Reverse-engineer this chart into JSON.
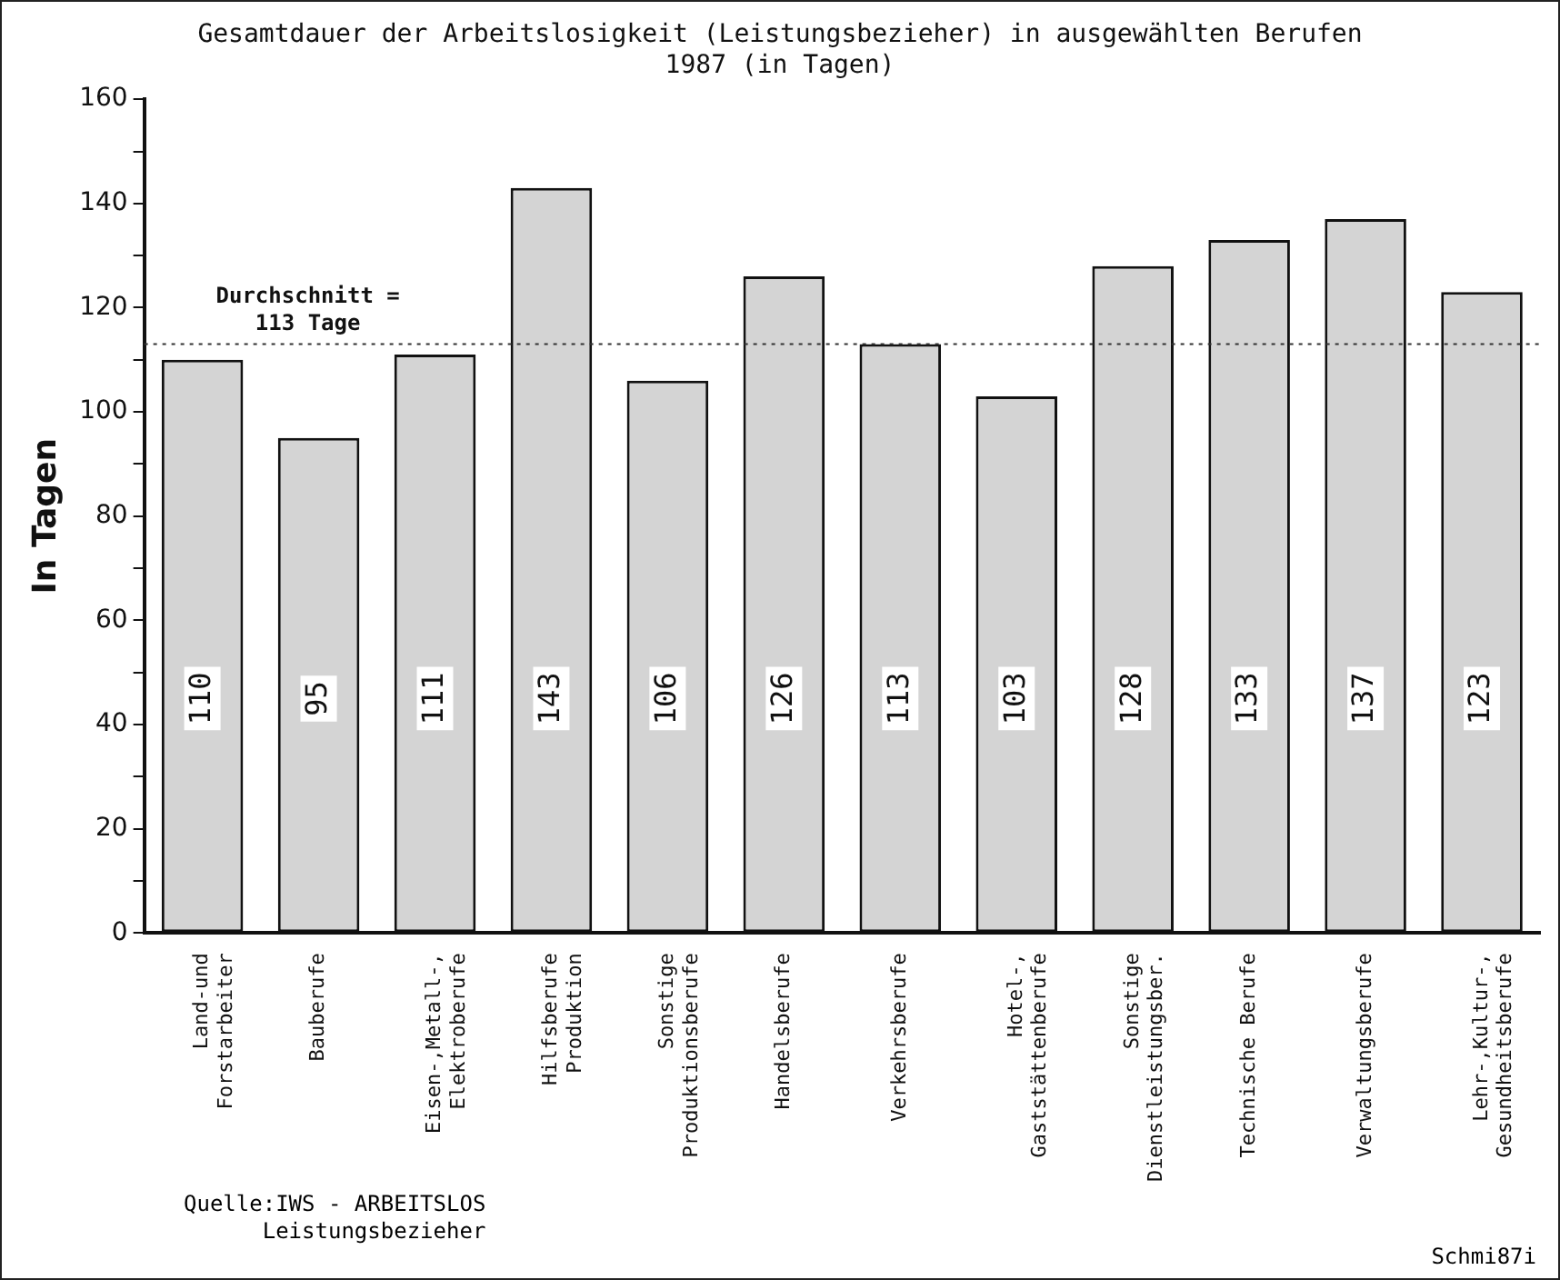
{
  "chart_data": {
    "type": "bar",
    "title": [
      "Gesamtdauer der Arbeitslosigkeit (Leistungsbezieher) in ausgewählten Berufen",
      "1987 (in Tagen)"
    ],
    "ylabel": "In Tagen",
    "categories": [
      "Land-und\nForstarbeiter",
      "Bauberufe",
      "Eisen-,Metall-,\nElektroberufe",
      "Hilfsberufe\nProduktion",
      "Sonstige\nProduktionsberufe",
      "Handelsberufe",
      "Verkehrsberufe",
      "Hotel-,\nGaststättenberufe",
      "Sonstige\nDienstleistungsber.",
      "Technische Berufe",
      "Verwaltungsberufe",
      "Lehr-,Kultur-,\nGesundheitsberufe"
    ],
    "values": [
      110,
      95,
      111,
      143,
      106,
      126,
      113,
      103,
      128,
      133,
      137,
      123
    ],
    "color": "#d4d4d4",
    "data_labels": true,
    "ylim": [
      0,
      160
    ],
    "yticks": [
      0,
      {
        "value": 10,
        "label": null
      },
      20,
      {
        "value": 30,
        "label": null
      },
      40,
      {
        "value": 50,
        "label": null
      },
      60,
      {
        "value": 70,
        "label": null
      },
      80,
      {
        "value": 90,
        "label": null
      },
      100,
      {
        "value": 110,
        "label": null
      },
      120,
      {
        "value": 130,
        "label": null
      },
      140,
      {
        "value": 150,
        "label": null
      },
      160
    ],
    "grid": false,
    "ref_lines": [
      {
        "axis": "y",
        "value": 113,
        "label": "Durchschnitt =\n113 Tage",
        "line_style": "dotted"
      }
    ],
    "annotations": [
      "Quelle:IWS - ARBEITSLOS\n      Leistungsbezieher",
      "Schmi87i"
    ]
  }
}
